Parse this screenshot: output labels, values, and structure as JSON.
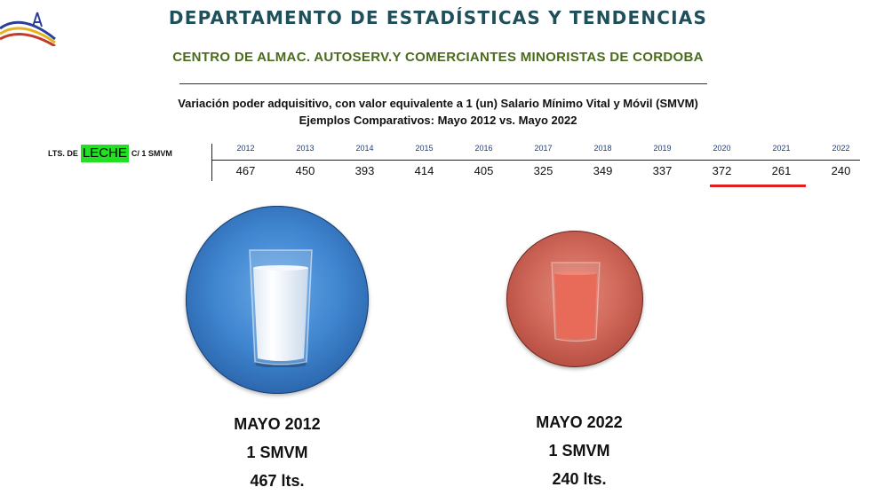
{
  "header": {
    "title": "DEPARTAMENTO DE ESTADÍSTICAS Y TENDENCIAS",
    "subtitle": "CENTRO DE ALMAC. AUTOSERV.Y COMERCIANTES MINORISTAS DE CORDOBA",
    "heading_line1": "Variación poder adquisitivo, con valor equivalente a 1 (un) Salario Mínimo Vital y Móvil (SMVM)",
    "heading_line2": "Ejemplos Comparativos: Mayo 2012 vs. Mayo 2022"
  },
  "table": {
    "label_prefix": "LTS. DE",
    "label_highlight": "LECHE",
    "label_suffix": "C/ 1 SMVM",
    "years": [
      "2012",
      "2013",
      "2014",
      "2015",
      "2016",
      "2017",
      "2018",
      "2019",
      "2020",
      "2021",
      "2022"
    ],
    "values": [
      "467",
      "450",
      "393",
      "414",
      "405",
      "325",
      "349",
      "337",
      "372",
      "261",
      "240"
    ]
  },
  "left": {
    "line1": "MAYO 2012",
    "line2": "1 SMVM",
    "line3": "467 lts."
  },
  "right": {
    "line1": "MAYO 2022",
    "line2": "1 SMVM",
    "line3": "240 lts."
  },
  "colors": {
    "title": "#1f4f5a",
    "subtitle": "#4a6b1b",
    "highlight": "#22e022",
    "underline": "#e02020",
    "circle_blue": "#3f86d0",
    "circle_red": "#d0685a"
  }
}
